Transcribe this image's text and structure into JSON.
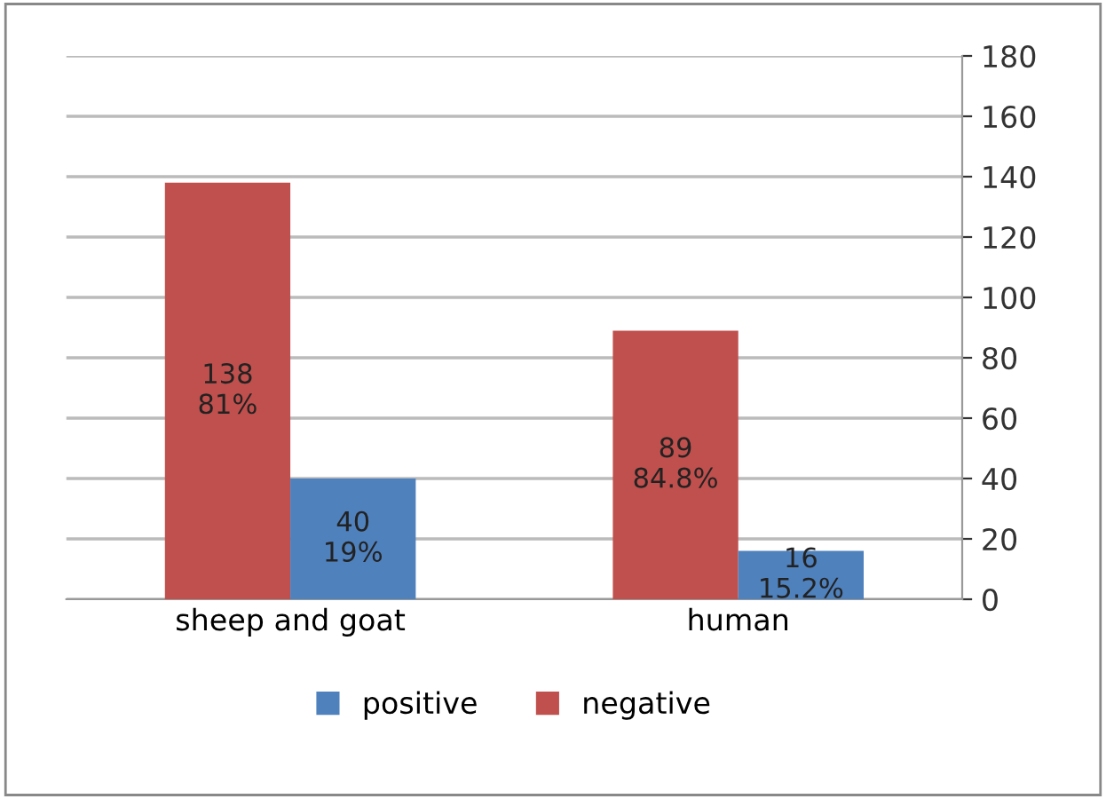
{
  "chart_data": {
    "type": "bar",
    "categories": [
      "sheep and goat",
      "human"
    ],
    "series": [
      {
        "name": "negative",
        "color": "#c0504d",
        "values": [
          138,
          89
        ],
        "value_labels": [
          "138\n81%",
          "89\n84.8%"
        ]
      },
      {
        "name": "positive",
        "color": "#4f81bd",
        "values": [
          40,
          16
        ],
        "value_labels": [
          "40\n19%",
          "16\n15.2%"
        ]
      }
    ],
    "ylim": [
      0,
      180
    ],
    "yticks": [
      0,
      20,
      40,
      60,
      80,
      100,
      120,
      140,
      160,
      180
    ],
    "grid": "y",
    "legend": "bottom"
  }
}
